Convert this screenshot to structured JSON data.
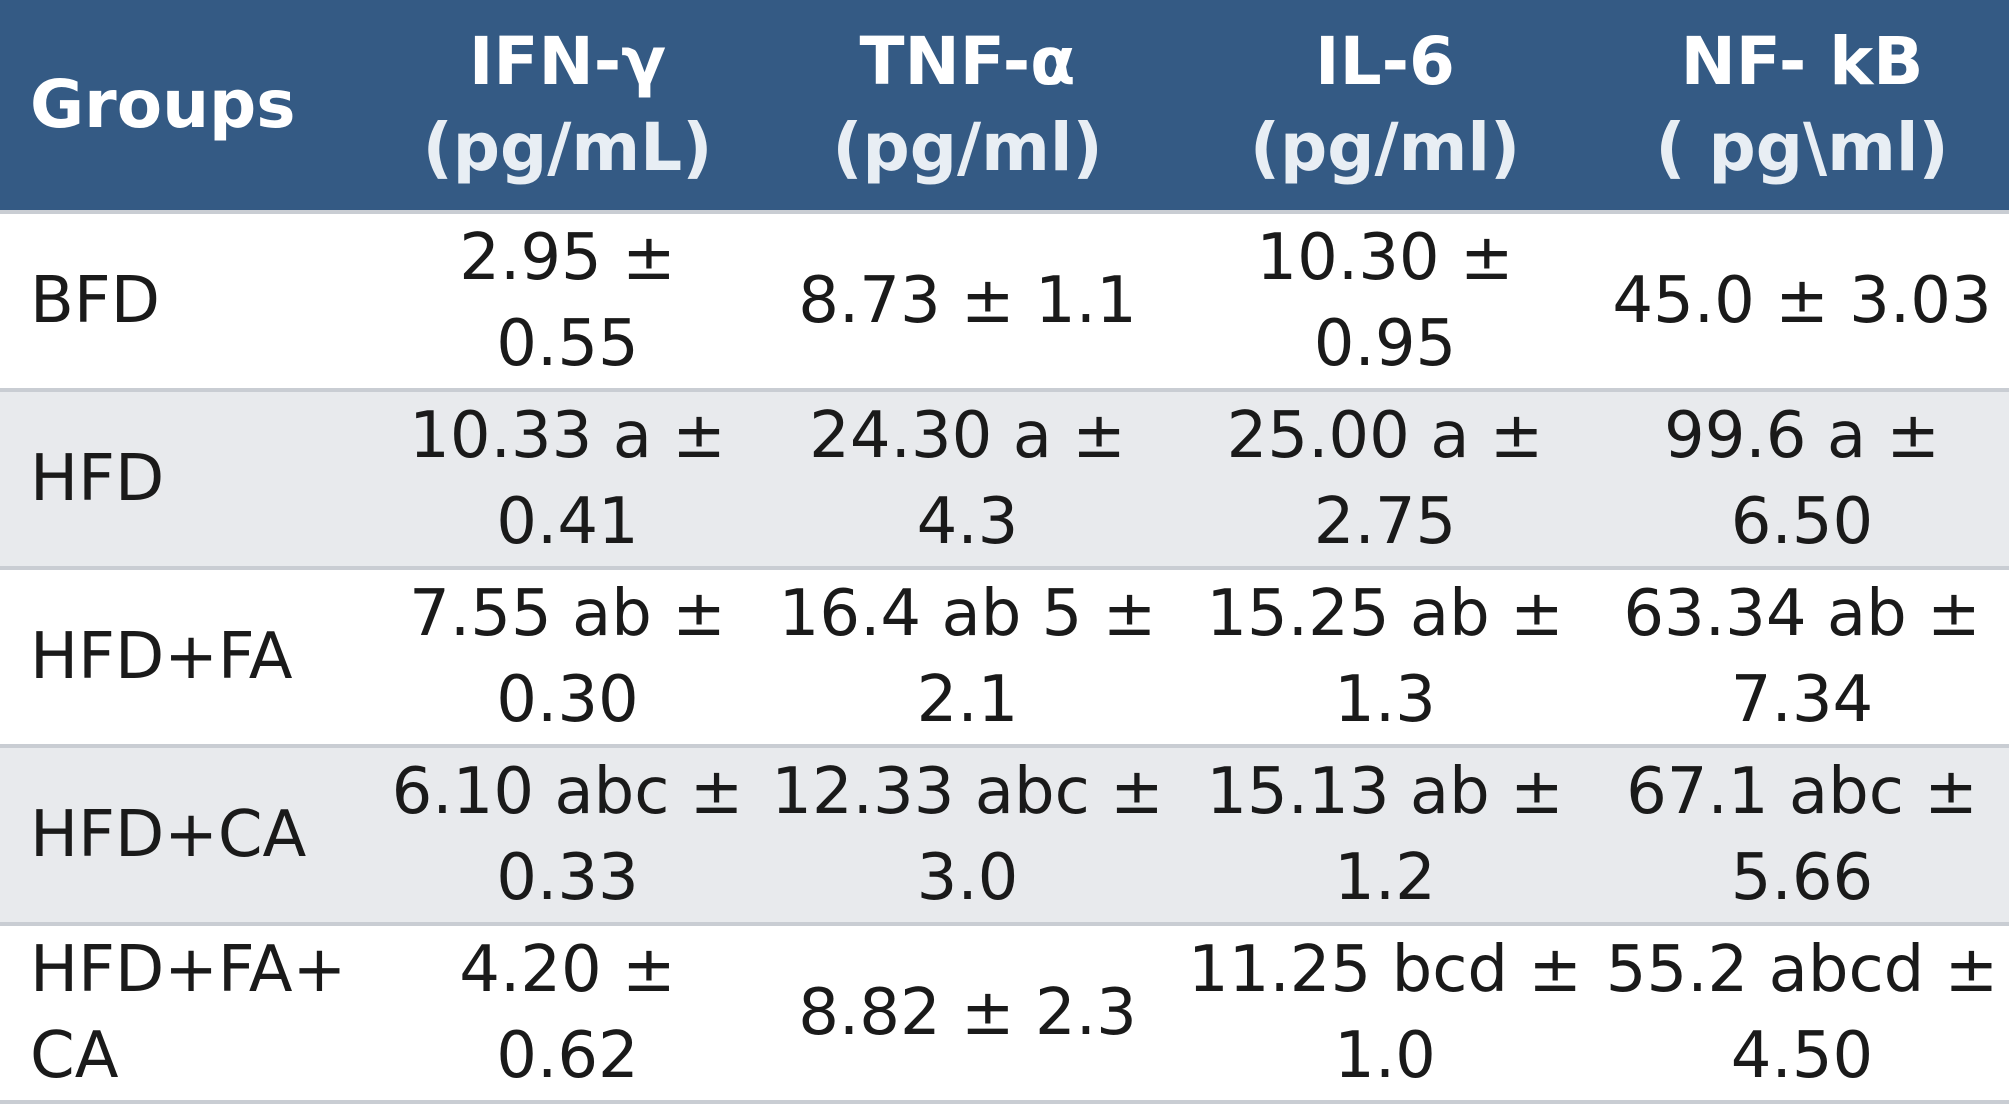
{
  "table": {
    "headers": [
      {
        "name": "Groups",
        "unit": ""
      },
      {
        "name": "IFN-γ",
        "unit": "(pg/mL)"
      },
      {
        "name": "TNF-α",
        "unit": "(pg/ml)"
      },
      {
        "name": "IL-6",
        "unit": "(pg/ml)"
      },
      {
        "name": "NF- kB",
        "unit": "( pg\\ml)"
      }
    ],
    "rows": [
      [
        "BFD",
        "2.95 ± 0.55",
        "8.73 ± 1.1",
        "10.30 ± 0.95",
        "45.0 ± 3.03"
      ],
      [
        "HFD",
        "10.33 a ± 0.41",
        "24.30 a ± 4.3",
        "25.00 a ± 2.75",
        "99.6 a ± 6.50"
      ],
      [
        "HFD+FA",
        "7.55 ab ± 0.30",
        "16.4 ab 5 ± 2.1",
        "15.25 ab ± 1.3",
        "63.34 ab ± 7.34"
      ],
      [
        "HFD+CA",
        "6.10 abc ± 0.33",
        "12.33 abc ± 3.0",
        "15.13 ab ± 1.2",
        "67.1 abc ± 5.66"
      ],
      [
        "HFD+FA+ CA",
        "4.20 ± 0.62",
        "8.82 ± 2.3",
        "11.25 bcd ± 1.0",
        "55.2 abcd ± 4.50"
      ]
    ]
  },
  "colors": {
    "header_bg": "#345a84",
    "header_text": "#ffffff",
    "stripe_bg": "#e8eaed",
    "body_text": "#1a1a1a",
    "row_border": "#c9cdd3"
  }
}
